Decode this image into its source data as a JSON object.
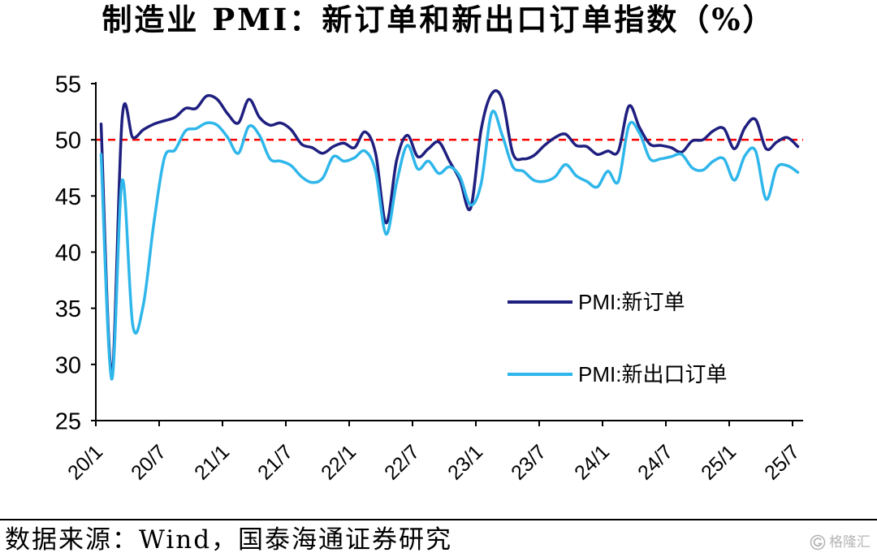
{
  "chart_data": {
    "type": "line",
    "title": "制造业 PMI：新订单和新出口订单指数（%）",
    "x": [
      "20/1",
      "20/2",
      "20/3",
      "20/4",
      "20/5",
      "20/6",
      "20/7",
      "20/8",
      "20/9",
      "20/10",
      "20/11",
      "20/12",
      "21/1",
      "21/2",
      "21/3",
      "21/4",
      "21/5",
      "21/6",
      "21/7",
      "21/8",
      "21/9",
      "21/10",
      "21/11",
      "21/12",
      "22/1",
      "22/2",
      "22/3",
      "22/4",
      "22/5",
      "22/6",
      "22/7",
      "22/8",
      "22/9",
      "22/10",
      "22/11",
      "22/12",
      "23/1",
      "23/2",
      "23/3",
      "23/4",
      "23/5",
      "23/6",
      "23/7",
      "23/8",
      "23/9",
      "23/10",
      "23/11",
      "23/12",
      "24/1",
      "24/2",
      "24/3",
      "24/4",
      "24/5",
      "24/6",
      "24/7",
      "24/8",
      "24/9",
      "24/10",
      "24/11",
      "24/12",
      "25/1",
      "25/2",
      "25/3",
      "25/4",
      "25/5",
      "25/6",
      "25/7"
    ],
    "ylim": [
      25,
      55
    ],
    "yticks": [
      25,
      30,
      35,
      40,
      45,
      50,
      55
    ],
    "series": [
      {
        "name": "PMI:新订单",
        "color": "#1F1F80",
        "values": [
          51.4,
          29.3,
          52.0,
          50.2,
          50.9,
          51.4,
          51.7,
          52.0,
          52.8,
          52.8,
          53.9,
          53.6,
          52.3,
          51.5,
          53.6,
          52.0,
          51.3,
          51.5,
          50.9,
          49.6,
          49.3,
          48.8,
          49.4,
          49.7,
          49.3,
          50.7,
          48.8,
          42.6,
          48.2,
          50.4,
          48.5,
          49.2,
          49.8,
          48.1,
          46.4,
          43.9,
          50.9,
          54.1,
          53.6,
          48.8,
          48.3,
          48.6,
          49.5,
          50.2,
          50.5,
          49.5,
          49.4,
          48.7,
          49.0,
          49.0,
          53.0,
          51.1,
          49.6,
          49.5,
          49.3,
          48.9,
          49.9,
          50.0,
          50.8,
          51.0,
          49.2,
          51.1,
          51.8,
          49.2,
          49.8,
          50.2,
          49.4
        ]
      },
      {
        "name": "PMI:新出口订单",
        "color": "#2FB6EA",
        "values": [
          48.7,
          28.7,
          46.4,
          33.5,
          35.3,
          42.6,
          48.4,
          49.1,
          50.8,
          51.0,
          51.5,
          51.3,
          50.2,
          48.8,
          51.2,
          50.4,
          48.3,
          48.1,
          47.7,
          46.7,
          46.2,
          46.6,
          48.5,
          48.1,
          48.4,
          49.0,
          47.2,
          41.6,
          46.2,
          49.5,
          47.4,
          48.1,
          47.0,
          47.6,
          46.7,
          44.2,
          46.1,
          52.4,
          50.4,
          47.6,
          47.2,
          46.4,
          46.3,
          46.7,
          47.8,
          46.8,
          46.3,
          45.8,
          47.2,
          46.3,
          51.3,
          50.6,
          48.3,
          48.3,
          48.5,
          48.7,
          47.5,
          47.3,
          48.1,
          48.3,
          46.4,
          48.6,
          49.0,
          44.7,
          47.5,
          47.7,
          47.1
        ]
      }
    ],
    "reference_line": {
      "y": 50,
      "color": "#FF0000",
      "style": "dashed"
    },
    "legend": {
      "placement": "lower-right"
    },
    "grid": false
  },
  "source": "数据来源：Wind，国泰海通证券研究",
  "watermark": "格隆汇",
  "colors": {
    "text": "#000000",
    "axis": "#000000",
    "watermark": "#A8A8A8"
  }
}
